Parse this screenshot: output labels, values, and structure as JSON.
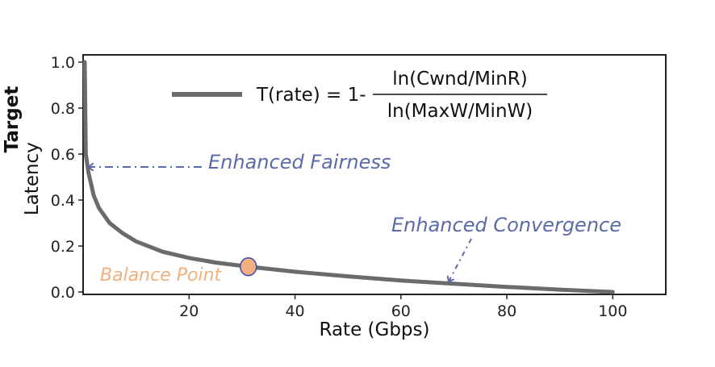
{
  "chart_data": {
    "type": "line",
    "xlabel": "Rate (Gbps)",
    "ylabel_parts": [
      "Latency",
      "Target"
    ],
    "xlim": [
      0,
      110
    ],
    "ylim": [
      0,
      1.0
    ],
    "x_ticks": [
      20,
      40,
      60,
      80,
      100
    ],
    "y_ticks": [
      0.0,
      0.2,
      0.4,
      0.6,
      0.8,
      1.0
    ],
    "y_tick_labels": [
      "0.0",
      "0.2",
      "0.4",
      "0.6",
      "0.8",
      "1.0"
    ],
    "grid": false,
    "series": [
      {
        "name": "T(rate) = 1 - ln(Cwnd/MinR) / ln(MaxW/MinW)",
        "color": "#6b6b6b",
        "x": [
          0.5,
          1,
          2,
          3,
          5,
          7.5,
          10,
          15,
          20,
          25,
          31.2,
          40,
          50,
          60,
          70,
          80,
          90,
          100
        ],
        "y": [
          0.6,
          0.52,
          0.42,
          0.365,
          0.3,
          0.255,
          0.22,
          0.175,
          0.148,
          0.128,
          0.11,
          0.088,
          0.068,
          0.05,
          0.036,
          0.022,
          0.01,
          0.0
        ]
      }
    ],
    "legend": {
      "position": "top",
      "label_left": "T(rate) = 1-",
      "numerator": "ln(Cwnd/MinR)",
      "denominator": "ln(MaxW/MinW)"
    },
    "markers": [
      {
        "label": "Balance Point",
        "x": 31.2,
        "y": 0.11,
        "fill": "#f2b07e",
        "stroke": "#3f51b5"
      }
    ],
    "annotations": [
      {
        "text": "Enhanced Fairness",
        "color": "#5b6aa8",
        "arrow_to": [
          0.5,
          0.57
        ]
      },
      {
        "text": "Enhanced Convergence",
        "color": "#5b6aa8",
        "arrow_to": [
          69,
          0.04
        ]
      },
      {
        "text": "Balance Point",
        "color": "#f0b07e"
      }
    ]
  }
}
